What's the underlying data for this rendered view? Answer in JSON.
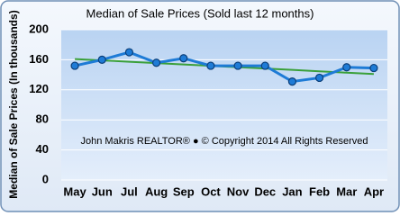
{
  "chart_data": {
    "type": "line",
    "title": "Median of Sale Prices (Sold last 12 months)",
    "y_label": "Median of Sale Prices (In thousands)",
    "annotation": "John Makris REALTOR® ● © Copyright 2014 All Rights Reserved",
    "categories": [
      "May",
      "Jun",
      "Jul",
      "Aug",
      "Sep",
      "Oct",
      "Nov",
      "Dec",
      "Jan",
      "Feb",
      "Mar",
      "Apr"
    ],
    "series": [
      {
        "color": "#1e7bd6",
        "values": [
          152,
          160,
          170,
          156,
          162,
          152,
          152,
          152,
          131,
          136,
          150,
          149
        ]
      },
      {
        "color": "#3aa03a",
        "values": [
          161,
          159.2,
          157.4,
          155.5,
          153.7,
          151.9,
          150.1,
          148.3,
          146.5,
          144.6,
          142.8,
          141
        ]
      }
    ],
    "ylim": [
      0,
      200
    ],
    "yticks": [
      0,
      40,
      80,
      120,
      160,
      200
    ],
    "grid": true
  }
}
